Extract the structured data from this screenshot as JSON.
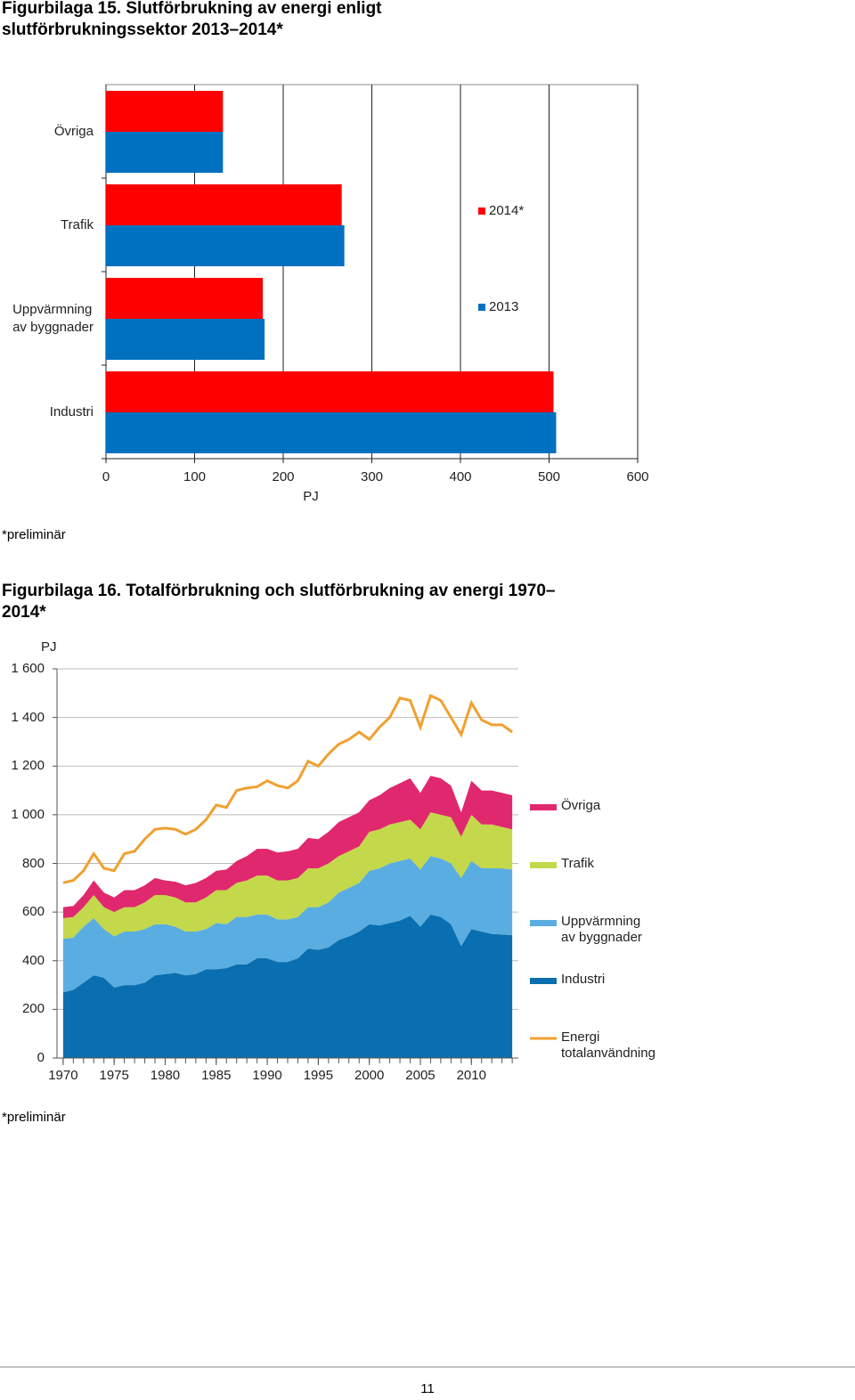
{
  "chart_data": [
    {
      "type": "bar",
      "orientation": "horizontal",
      "title": "Figurbilaga 15. Slutförbrukning av energi enligt slutförbrukningssektor 2013–2014*",
      "categories": [
        "Övriga",
        "Trafik",
        "Uppvärmning\nav byggnader",
        "Industri"
      ],
      "series": [
        {
          "name": "2014*",
          "color": "#ff0000",
          "values": [
            132,
            266,
            177,
            505
          ]
        },
        {
          "name": "2013",
          "color": "#0070c0",
          "values": [
            132,
            269,
            179,
            508
          ]
        }
      ],
      "xlabel": "PJ",
      "xlim": [
        0,
        600
      ],
      "xticks": [
        0,
        100,
        200,
        300,
        400,
        500,
        600
      ],
      "grid": true,
      "legend": "right",
      "note": "*preliminär"
    },
    {
      "type": "area",
      "stacked": true,
      "title": "Figurbilaga 16. Totalförbrukning och slutförbrukning av energi 1970–2014*",
      "ylabel": "PJ",
      "x": [
        1970,
        1971,
        1972,
        1973,
        1974,
        1975,
        1976,
        1977,
        1978,
        1979,
        1980,
        1981,
        1982,
        1983,
        1984,
        1985,
        1986,
        1987,
        1988,
        1989,
        1990,
        1991,
        1992,
        1993,
        1994,
        1995,
        1996,
        1997,
        1998,
        1999,
        2000,
        2001,
        2002,
        2003,
        2004,
        2005,
        2006,
        2007,
        2008,
        2009,
        2010,
        2011,
        2012,
        2013,
        2014
      ],
      "series": [
        {
          "name": "Industri",
          "color": "#0a6fb0",
          "values": [
            270,
            280,
            310,
            340,
            330,
            290,
            300,
            300,
            310,
            340,
            345,
            350,
            340,
            345,
            365,
            365,
            370,
            385,
            385,
            410,
            410,
            395,
            395,
            410,
            450,
            445,
            455,
            485,
            500,
            520,
            550,
            545,
            555,
            565,
            585,
            540,
            590,
            580,
            550,
            460,
            530,
            520,
            510,
            508,
            505
          ]
        },
        {
          "name": "Uppvärmning\nav byggnader",
          "color": "#5aade0",
          "values": [
            220,
            215,
            230,
            235,
            200,
            210,
            220,
            220,
            220,
            210,
            205,
            190,
            180,
            175,
            165,
            190,
            180,
            195,
            195,
            180,
            180,
            175,
            175,
            170,
            170,
            175,
            185,
            195,
            200,
            200,
            220,
            235,
            245,
            245,
            235,
            235,
            240,
            240,
            250,
            280,
            280,
            260,
            270,
            272,
            270
          ]
        },
        {
          "name": "Trafik",
          "color": "#c3d84a",
          "values": [
            85,
            85,
            80,
            95,
            90,
            100,
            100,
            100,
            110,
            120,
            120,
            120,
            120,
            120,
            130,
            135,
            140,
            140,
            150,
            160,
            160,
            160,
            160,
            160,
            160,
            160,
            160,
            150,
            150,
            150,
            160,
            160,
            160,
            160,
            160,
            165,
            180,
            180,
            190,
            170,
            190,
            180,
            180,
            170,
            165
          ]
        },
        {
          "name": "Övriga",
          "color": "#e0286e",
          "values": [
            45,
            45,
            50,
            60,
            60,
            60,
            70,
            70,
            70,
            70,
            60,
            65,
            70,
            80,
            80,
            80,
            85,
            90,
            100,
            110,
            110,
            115,
            120,
            120,
            125,
            120,
            130,
            140,
            140,
            140,
            130,
            140,
            150,
            160,
            170,
            150,
            150,
            150,
            130,
            100,
            140,
            140,
            140,
            140,
            140
          ]
        },
        {
          "name": "Energi\ntotalanvändning",
          "type": "line",
          "color": "#f0a030",
          "values": [
            720,
            730,
            770,
            840,
            780,
            770,
            840,
            850,
            900,
            940,
            945,
            940,
            920,
            940,
            980,
            1040,
            1030,
            1100,
            1110,
            1115,
            1140,
            1120,
            1110,
            1140,
            1220,
            1200,
            1250,
            1290,
            1310,
            1340,
            1310,
            1360,
            1400,
            1480,
            1470,
            1360,
            1490,
            1470,
            1400,
            1330,
            1460,
            1390,
            1370,
            1370,
            1340
          ]
        }
      ],
      "xlim": [
        1969.4,
        2014.6
      ],
      "xticks": [
        1970,
        1975,
        1980,
        1985,
        1990,
        1995,
        2000,
        2005,
        2010
      ],
      "ylim": [
        0,
        1600
      ],
      "yticks": [
        0,
        200,
        400,
        600,
        800,
        {
          "value": 1000,
          "label": "1 000"
        },
        {
          "value": 1200,
          "label": "1 200"
        },
        {
          "value": 1400,
          "label": "1 400"
        },
        {
          "value": 1600,
          "label": "1 600"
        }
      ],
      "grid": true,
      "legend": "right",
      "note": "*preliminär"
    }
  ],
  "page_number": "11"
}
